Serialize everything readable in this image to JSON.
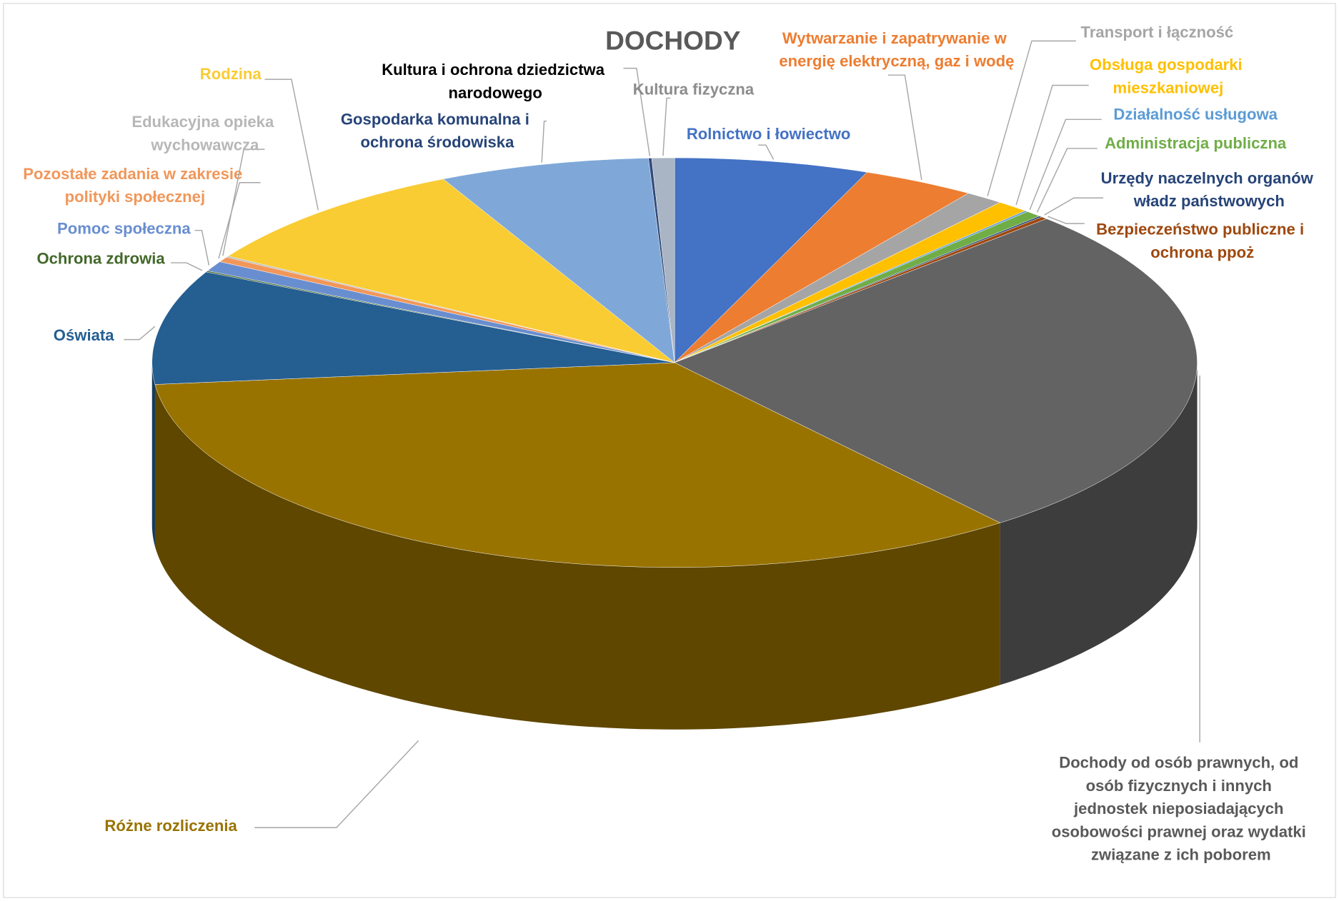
{
  "chart_data": {
    "type": "pie3d",
    "title": "DOCHODY",
    "categories": [
      "Rolnictwo i łowiectwo",
      "Wytwarzanie i zapatrywanie w energię elektryczną, gaz i wodę",
      "Transport i łączność",
      "Obsługa gospodarki mieszkaniowej",
      "Działalność usługowa",
      "Administracja publiczna",
      "Urzędy naczelnych organów władz państwowych",
      "Bezpieczeństwo publiczne i ochrona ppoż",
      "Dochody od osób prawnych, od osób fizycznych i innych jednostek nieposiadających osobowości prawnej oraz wydatki związane z ich poborem",
      "Różne rozliczenia",
      "Oświata",
      "Ochrona zdrowia",
      "Pomoc społeczna",
      "Pozostałe zadania w zakresie polityki społecznej",
      "Edukacyjna opieka wychowawcza",
      "Rodzina",
      "Gospodarka komunalna i ochrona środowiska",
      "Kultura i ochrona dziedzictwa narodowego",
      "Kultura fizyczna"
    ],
    "values": [
      6,
      3.5,
      1.2,
      1,
      0.1,
      0.5,
      0.1,
      0.2,
      26.7,
      34,
      9,
      0.1,
      0.8,
      0.4,
      0.1,
      9,
      6.5,
      0.1,
      0.7
    ],
    "colors": [
      "#4472c4",
      "#ed7d31",
      "#a5a5a5",
      "#ffc000",
      "#5b9bd5",
      "#70ad47",
      "#264478",
      "#9e480e",
      "#636363",
      "#997300",
      "#255e91",
      "#43682b",
      "#698ed0",
      "#f1975a",
      "#b7b7b7",
      "#f9cc34",
      "#7fa8d8",
      "#334c7c",
      "#a9b4c4"
    ],
    "label_colors": [
      "#4472c4",
      "#ed7d31",
      "#a5a5a5",
      "#ffc000",
      "#5b9bd5",
      "#70ad47",
      "#264478",
      "#9e480e",
      "#595959",
      "#997300",
      "#255e91",
      "#43682b",
      "#698ed0",
      "#f1975a",
      "#b7b7b7",
      "#f9cc34",
      "#264478",
      "#000000",
      "#8c8c8c"
    ]
  }
}
